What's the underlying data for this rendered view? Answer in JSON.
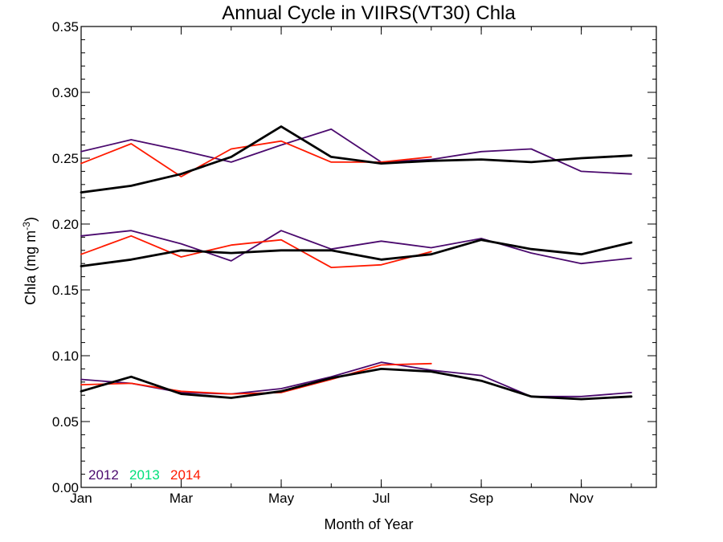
{
  "chart_data": {
    "type": "line",
    "title": "Annual Cycle in VIIRS(VT30) Chla",
    "xlabel": "Month of Year",
    "ylabel": {
      "main": "Chla (mg m",
      "sup": "-3",
      "close": ")"
    },
    "xlim": [
      1,
      12.5
    ],
    "ylim": [
      0,
      0.35
    ],
    "x_ticks": [
      {
        "value": 1,
        "label": "Jan"
      },
      {
        "value": 3,
        "label": "Mar"
      },
      {
        "value": 5,
        "label": "May"
      },
      {
        "value": 7,
        "label": "Jul"
      },
      {
        "value": 9,
        "label": "Sep"
      },
      {
        "value": 11,
        "label": "Nov"
      }
    ],
    "y_ticks": [
      {
        "value": 0,
        "label": "0.00"
      },
      {
        "value": 0.05,
        "label": "0.05"
      },
      {
        "value": 0.1,
        "label": "0.10"
      },
      {
        "value": 0.15,
        "label": "0.15"
      },
      {
        "value": 0.2,
        "label": "0.20"
      },
      {
        "value": 0.25,
        "label": "0.25"
      },
      {
        "value": 0.3,
        "label": "0.30"
      },
      {
        "value": 0.35,
        "label": "0.35"
      }
    ],
    "legend": {
      "placement": "bottom-left",
      "entries": [
        {
          "label": "2012",
          "color": "#4b0a6e"
        },
        {
          "label": "2013",
          "color": "#00e07a"
        },
        {
          "label": "2014",
          "color": "#ff1a00"
        }
      ]
    },
    "x": [
      1,
      2,
      3,
      4,
      5,
      6,
      7,
      8,
      9,
      10,
      11,
      12
    ],
    "series": [
      {
        "group": "upper",
        "year": "2012",
        "color": "#4b0a6e",
        "style": "thin",
        "values": [
          0.255,
          0.264,
          0.256,
          0.247,
          0.26,
          0.272,
          0.247,
          0.249,
          0.255,
          0.257,
          0.24,
          0.238
        ]
      },
      {
        "group": "upper",
        "year": "2014",
        "color": "#ff1a00",
        "style": "thin",
        "values": [
          0.246,
          0.261,
          0.236,
          0.257,
          0.263,
          0.247,
          0.247,
          0.251,
          null,
          null,
          null,
          null
        ]
      },
      {
        "group": "upper",
        "year": "mean",
        "color": "#000000",
        "style": "thick",
        "values": [
          0.224,
          0.229,
          0.238,
          0.251,
          0.274,
          0.251,
          0.246,
          0.248,
          0.249,
          0.247,
          0.25,
          0.252
        ]
      },
      {
        "group": "middle",
        "year": "2012",
        "color": "#4b0a6e",
        "style": "thin",
        "values": [
          0.191,
          0.195,
          0.185,
          0.172,
          0.195,
          0.181,
          0.187,
          0.182,
          0.189,
          0.178,
          0.17,
          0.174
        ]
      },
      {
        "group": "middle",
        "year": "2014",
        "color": "#ff1a00",
        "style": "thin",
        "values": [
          0.177,
          0.191,
          0.175,
          0.184,
          0.188,
          0.167,
          0.169,
          0.179,
          null,
          null,
          null,
          null
        ]
      },
      {
        "group": "middle",
        "year": "mean",
        "color": "#000000",
        "style": "thick",
        "values": [
          0.168,
          0.173,
          0.18,
          0.178,
          0.18,
          0.18,
          0.173,
          0.177,
          0.188,
          0.181,
          0.177,
          0.186
        ]
      },
      {
        "group": "lower",
        "year": "2012",
        "color": "#4b0a6e",
        "style": "thin",
        "values": [
          0.082,
          0.079,
          0.072,
          0.071,
          0.075,
          0.084,
          0.095,
          0.089,
          0.085,
          0.069,
          0.069,
          0.072
        ]
      },
      {
        "group": "lower",
        "year": "2014",
        "color": "#ff1a00",
        "style": "thin",
        "values": [
          0.078,
          0.079,
          0.073,
          0.071,
          0.072,
          0.082,
          0.093,
          0.094,
          null,
          null,
          null,
          null
        ]
      },
      {
        "group": "lower",
        "year": "mean",
        "color": "#000000",
        "style": "thick",
        "values": [
          0.073,
          0.084,
          0.071,
          0.068,
          0.073,
          0.083,
          0.09,
          0.088,
          0.081,
          0.069,
          0.067,
          0.069
        ]
      }
    ]
  }
}
